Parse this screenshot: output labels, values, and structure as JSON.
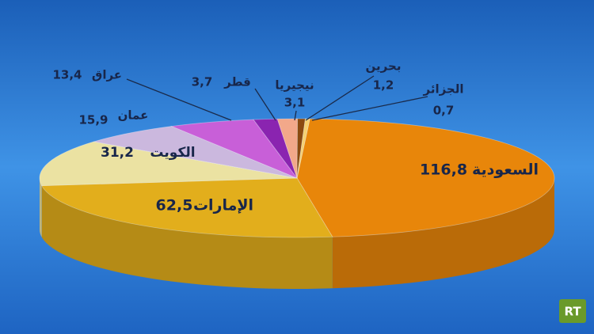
{
  "chart_data": {
    "type": "pie",
    "categories": [
      "السعودية",
      "الإمارات",
      "الكويت",
      "عمان",
      "عراق",
      "قطر",
      "نيجيريا",
      "بحرين",
      "الجزائر"
    ],
    "values": [
      116.8,
      62.5,
      31.2,
      15.9,
      13.4,
      3.7,
      3.1,
      1.2,
      0.7
    ],
    "value_labels": [
      "116,8",
      "62,5",
      "31,2",
      "15,9",
      "13,4",
      "3,7",
      "3,1",
      "1,2",
      "0,7"
    ],
    "colors": [
      "#e8860a",
      "#e2ae1c",
      "#ebe2a2",
      "#cbb8de",
      "#c85fd8",
      "#8a24b0",
      "#f2a88a",
      "#8b4a10",
      "#f6d070"
    ]
  },
  "logo": "RT"
}
